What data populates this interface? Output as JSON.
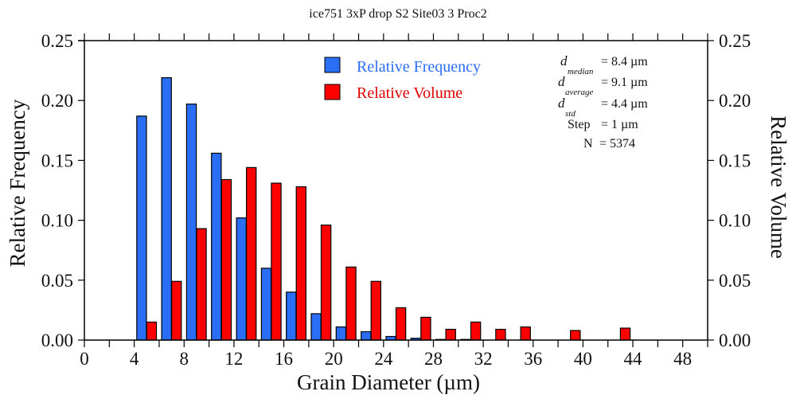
{
  "chart_data": {
    "type": "bar",
    "title": "ice751 3xP drop S2 Site03 3 Proc2",
    "xlabel": "Grain Diameter (µm)",
    "ylabel": "Relative Frequency",
    "y2label": "Relative Volume",
    "xlim": [
      0,
      50
    ],
    "ylim": [
      0,
      0.25
    ],
    "y2lim": [
      0,
      0.25
    ],
    "x_ticks": [
      0,
      4,
      8,
      12,
      16,
      20,
      24,
      28,
      32,
      36,
      40,
      44,
      48
    ],
    "x_minor_ticks": [
      2,
      6,
      10,
      14,
      18,
      22,
      26,
      30,
      34,
      38,
      42,
      46,
      50
    ],
    "y_ticks": [
      "0.00",
      "0.05",
      "0.10",
      "0.15",
      "0.20",
      "0.25"
    ],
    "y_tick_values": [
      0,
      0.05,
      0.1,
      0.15,
      0.2,
      0.25
    ],
    "grid": false,
    "legend_position": "top-center",
    "series": [
      {
        "name": "Relative Frequency",
        "color": "#2a6ef5",
        "axis": "left",
        "x": [
          5,
          7,
          9,
          11,
          13,
          15,
          17,
          19,
          21,
          23,
          25,
          27,
          29,
          31
        ],
        "values": [
          0.187,
          0.219,
          0.197,
          0.156,
          0.102,
          0.06,
          0.04,
          0.022,
          0.011,
          0.007,
          0.003,
          0.0015,
          0.0005,
          0.0005
        ]
      },
      {
        "name": "Relative Volume",
        "color": "#ff0000",
        "axis": "right",
        "x": [
          5,
          7,
          9,
          11,
          13,
          15,
          17,
          19,
          21,
          23,
          25,
          27,
          29,
          31,
          33,
          35,
          39,
          43
        ],
        "values": [
          0.015,
          0.049,
          0.093,
          0.134,
          0.144,
          0.131,
          0.128,
          0.096,
          0.061,
          0.049,
          0.027,
          0.019,
          0.009,
          0.015,
          0.009,
          0.011,
          0.008,
          0.01
        ]
      }
    ],
    "annotations": [
      {
        "symbol": "d",
        "subscript": "median",
        "value": "=  8.4 µm"
      },
      {
        "symbol": "d",
        "subscript": "average",
        "value": "=  9.1 µm"
      },
      {
        "symbol": "d",
        "subscript": "std",
        "value": "=  4.4 µm"
      },
      {
        "symbol": "Step",
        "subscript": "",
        "value": "=  1 µm"
      },
      {
        "symbol": "N",
        "subscript": "",
        "value": "= 5374"
      }
    ]
  }
}
